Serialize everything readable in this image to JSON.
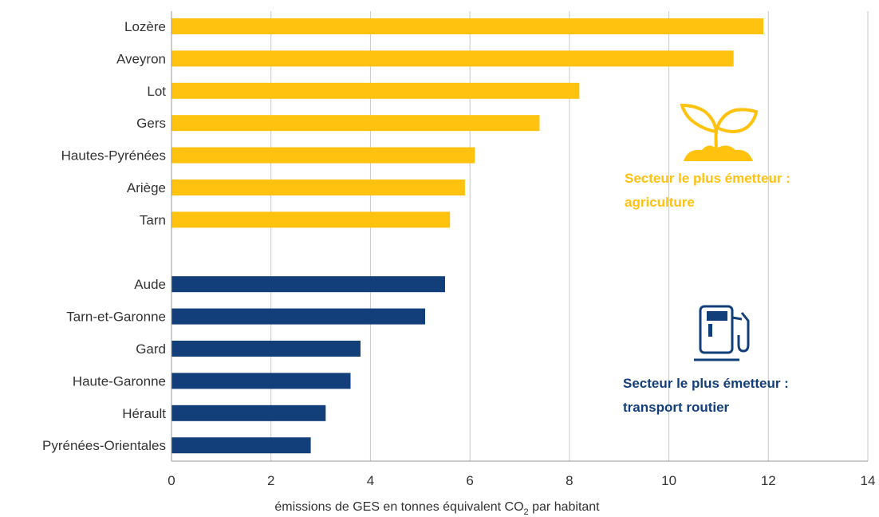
{
  "chart_data": {
    "type": "bar",
    "orientation": "horizontal",
    "xlabel_main": "émissions de GES en tonnes équivalent CO",
    "xlabel_sub": "2",
    "xlabel_tail": " par habitant",
    "xlim": [
      0,
      14
    ],
    "xticks": [
      "0",
      "2",
      "4",
      "6",
      "8",
      "10",
      "12",
      "14"
    ],
    "grid": true,
    "groups": [
      {
        "sector": "agriculture",
        "color": "#FFC20E",
        "annotation_line1": "Secteur le plus émetteur :",
        "annotation_line2": "agriculture",
        "icon": "plant-sprout-icon",
        "categories": [
          "Lozère",
          "Aveyron",
          "Lot",
          "Gers",
          "Hautes-Pyrénées",
          "Ariège",
          "Tarn"
        ],
        "values": [
          11.9,
          11.3,
          8.2,
          7.4,
          6.1,
          5.9,
          5.6
        ]
      },
      {
        "sector": "transport routier",
        "color": "#123F7A",
        "annotation_line1": "Secteur le plus émetteur :",
        "annotation_line2": "transport routier",
        "icon": "fuel-pump-icon",
        "categories": [
          "Aude",
          "Tarn-et-Garonne",
          "Gard",
          "Haute-Garonne",
          "Hérault",
          "Pyrénées-Orientales"
        ],
        "values": [
          5.5,
          5.1,
          3.8,
          3.6,
          3.1,
          2.8
        ]
      }
    ]
  }
}
